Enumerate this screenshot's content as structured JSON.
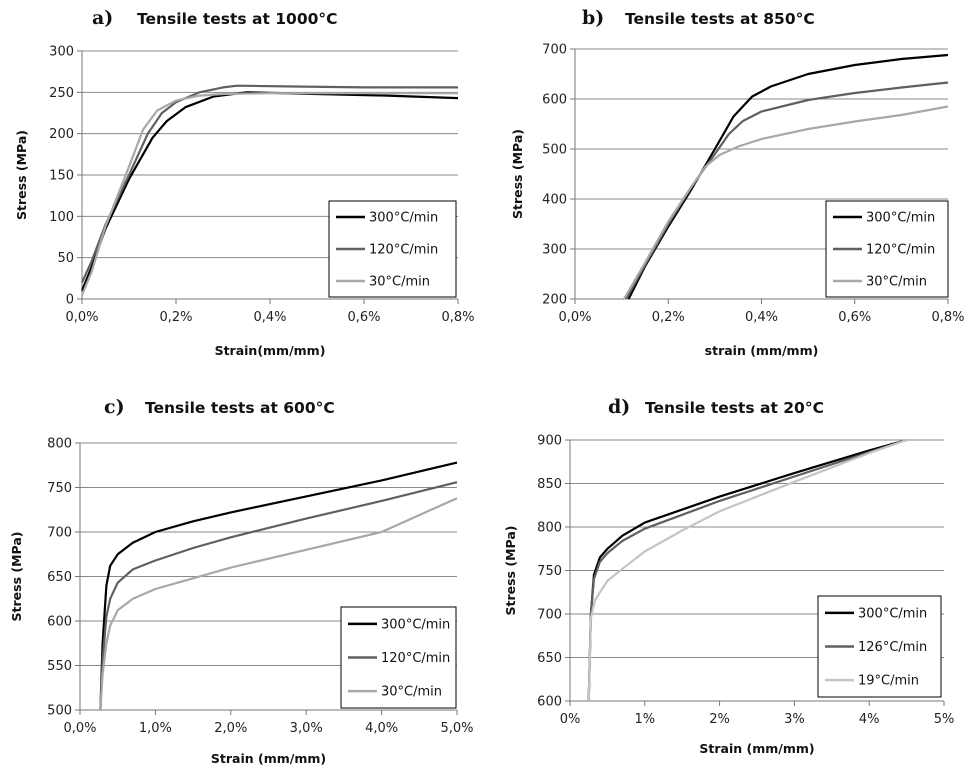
{
  "chart_data": [
    {
      "type": "line",
      "panel_label": "a)",
      "title": "Tensile tests at 1000°C",
      "xlabel": "Strain(mm/mm)",
      "ylabel": "Stress (MPa)",
      "xlim": [
        0,
        0.8
      ],
      "ylim": [
        0,
        300
      ],
      "x_ticks": [
        0,
        0.2,
        0.4,
        0.6,
        0.8
      ],
      "x_tick_labels": [
        "0,0%",
        "0,2%",
        "0,4%",
        "0,6%",
        "0,8%"
      ],
      "y_ticks": [
        0,
        50,
        100,
        150,
        200,
        250,
        300
      ],
      "y_tick_labels": [
        "0",
        "50",
        "100",
        "150",
        "200",
        "250",
        "300"
      ],
      "grid": "horizontal",
      "legend_position": "lower-right",
      "series": [
        {
          "name": "300°C/min",
          "color": "#000000",
          "x": [
            0,
            0.02,
            0.05,
            0.1,
            0.15,
            0.18,
            0.22,
            0.28,
            0.35,
            0.5,
            0.65,
            0.8
          ],
          "y": [
            10,
            38,
            85,
            145,
            195,
            215,
            232,
            245,
            250,
            248,
            246,
            243
          ]
        },
        {
          "name": "120°C/min",
          "color": "#606060",
          "x": [
            0,
            0.02,
            0.05,
            0.1,
            0.14,
            0.17,
            0.2,
            0.25,
            0.3,
            0.33,
            0.45,
            0.6,
            0.8
          ],
          "y": [
            20,
            45,
            90,
            150,
            200,
            225,
            238,
            250,
            256,
            258,
            257,
            256,
            256
          ]
        },
        {
          "name": "30°C/min",
          "color": "#a8a8a8",
          "x": [
            0,
            0.02,
            0.05,
            0.1,
            0.13,
            0.16,
            0.2,
            0.25,
            0.3,
            0.4,
            0.6,
            0.8
          ],
          "y": [
            5,
            32,
            88,
            160,
            205,
            228,
            240,
            246,
            248,
            249,
            249,
            249
          ]
        }
      ]
    },
    {
      "type": "line",
      "panel_label": "b)",
      "title": "Tensile tests at 850°C",
      "xlabel": "strain (mm/mm)",
      "ylabel": "Stress (MPa)",
      "xlim": [
        0,
        0.8
      ],
      "ylim": [
        200,
        700
      ],
      "x_ticks": [
        0,
        0.2,
        0.4,
        0.6,
        0.8
      ],
      "x_tick_labels": [
        "0,0%",
        "0,2%",
        "0,4%",
        "0,6%",
        "0,8%"
      ],
      "y_ticks": [
        200,
        300,
        400,
        500,
        600,
        700
      ],
      "y_tick_labels": [
        "200",
        "300",
        "400",
        "500",
        "600",
        "700"
      ],
      "grid": "horizontal",
      "legend_position": "lower-right",
      "series": [
        {
          "name": "300°C/min",
          "color": "#000000",
          "x": [
            0.115,
            0.15,
            0.2,
            0.25,
            0.3,
            0.34,
            0.38,
            0.42,
            0.5,
            0.6,
            0.7,
            0.8
          ],
          "y": [
            200,
            265,
            345,
            420,
            500,
            565,
            605,
            625,
            650,
            668,
            680,
            688
          ]
        },
        {
          "name": "120°C/min",
          "color": "#606060",
          "x": [
            0.11,
            0.15,
            0.2,
            0.25,
            0.3,
            0.33,
            0.36,
            0.4,
            0.5,
            0.6,
            0.7,
            0.8
          ],
          "y": [
            200,
            268,
            350,
            425,
            490,
            530,
            556,
            575,
            598,
            612,
            623,
            633
          ]
        },
        {
          "name": "30°C/min",
          "color": "#a8a8a8",
          "x": [
            0.105,
            0.15,
            0.2,
            0.25,
            0.28,
            0.31,
            0.35,
            0.4,
            0.5,
            0.6,
            0.7,
            0.8
          ],
          "y": [
            200,
            272,
            355,
            425,
            465,
            488,
            505,
            520,
            540,
            555,
            568,
            585
          ]
        }
      ]
    },
    {
      "type": "line",
      "panel_label": "c)",
      "title": "Tensile tests at 600°C",
      "xlabel": "Strain (mm/mm)",
      "ylabel": "Stress (MPa)",
      "xlim": [
        0,
        5
      ],
      "ylim": [
        500,
        800
      ],
      "x_ticks": [
        0,
        1,
        2,
        3,
        4,
        5
      ],
      "x_tick_labels": [
        "0,0%",
        "1,0%",
        "2,0%",
        "3,0%",
        "4,0%",
        "5,0%"
      ],
      "y_ticks": [
        500,
        550,
        600,
        650,
        700,
        750,
        800
      ],
      "y_tick_labels": [
        "500",
        "550",
        "600",
        "650",
        "700",
        "750",
        "800"
      ],
      "grid": "horizontal",
      "legend_position": "lower-right",
      "series": [
        {
          "name": "300°C/min",
          "color": "#000000",
          "x": [
            0.27,
            0.3,
            0.35,
            0.4,
            0.5,
            0.7,
            1.0,
            1.5,
            2.0,
            3.0,
            4.0,
            5.0
          ],
          "y": [
            500,
            575,
            640,
            662,
            675,
            688,
            700,
            712,
            722,
            740,
            758,
            778
          ]
        },
        {
          "name": "120°C/min",
          "color": "#606060",
          "x": [
            0.27,
            0.3,
            0.35,
            0.4,
            0.5,
            0.7,
            1.0,
            1.5,
            2.0,
            3.0,
            4.0,
            5.0
          ],
          "y": [
            500,
            555,
            605,
            625,
            643,
            658,
            668,
            682,
            694,
            715,
            735,
            756
          ]
        },
        {
          "name": "30°C/min",
          "color": "#a8a8a8",
          "x": [
            0.27,
            0.3,
            0.35,
            0.4,
            0.5,
            0.7,
            1.0,
            1.5,
            2.0,
            3.0,
            4.0,
            5.0
          ],
          "y": [
            500,
            540,
            575,
            595,
            612,
            625,
            636,
            648,
            660,
            680,
            700,
            738
          ]
        }
      ]
    },
    {
      "type": "line",
      "panel_label": "d)",
      "title": "Tensile tests at 20°C",
      "xlabel": "Strain (mm/mm)",
      "ylabel": "Stress (MPa)",
      "xlim": [
        0,
        5
      ],
      "ylim": [
        600,
        900
      ],
      "x_ticks": [
        0,
        1,
        2,
        3,
        4,
        5
      ],
      "x_tick_labels": [
        "0%",
        "1%",
        "2%",
        "3%",
        "4%",
        "5%"
      ],
      "y_ticks": [
        600,
        650,
        700,
        750,
        800,
        850,
        900
      ],
      "y_tick_labels": [
        "600",
        "650",
        "700",
        "750",
        "800",
        "850",
        "900"
      ],
      "grid": "horizontal",
      "legend_position": "lower-right",
      "series": [
        {
          "name": "300°C/min",
          "color": "#000000",
          "x": [
            0.25,
            0.28,
            0.32,
            0.4,
            0.5,
            0.7,
            1.0,
            1.5,
            2.0,
            3.0,
            4.0,
            4.5
          ],
          "y": [
            600,
            700,
            745,
            765,
            775,
            790,
            805,
            820,
            835,
            862,
            888,
            900
          ]
        },
        {
          "name": "126°C/min",
          "color": "#606060",
          "x": [
            0.25,
            0.28,
            0.32,
            0.4,
            0.5,
            0.7,
            1.0,
            1.5,
            2.0,
            3.0,
            4.0,
            4.5
          ],
          "y": [
            600,
            700,
            740,
            760,
            770,
            784,
            798,
            814,
            830,
            858,
            886,
            900
          ]
        },
        {
          "name": "19°C/min",
          "color": "#c4c4c4",
          "x": [
            0.25,
            0.28,
            0.33,
            0.4,
            0.5,
            0.7,
            1.0,
            1.5,
            2.0,
            3.0,
            4.0,
            4.5
          ],
          "y": [
            600,
            695,
            715,
            725,
            738,
            752,
            772,
            796,
            818,
            852,
            885,
            900
          ]
        }
      ]
    }
  ]
}
